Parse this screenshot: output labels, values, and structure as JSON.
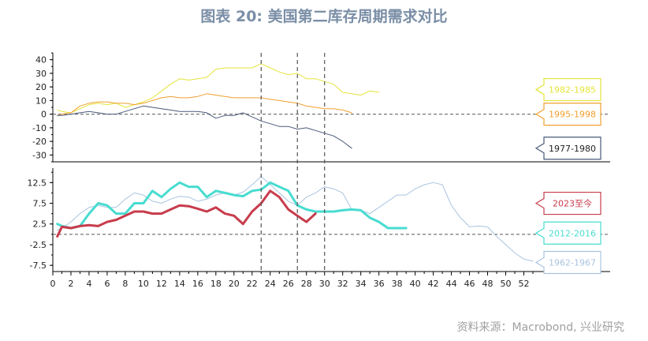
{
  "title": "图表 20: 美国第二库存周期需求对比",
  "source": "资料来源：Macrobond, 兴业研究",
  "chart_data": [
    {
      "type": "line",
      "panel": "top",
      "ylim": [
        -35,
        45
      ],
      "yticks": [
        40,
        30,
        20,
        10,
        0,
        -10,
        -20,
        -30
      ],
      "zero_line": "dashed",
      "series": [
        {
          "name": "1982-1985",
          "color": "#e4e43a",
          "width": 1,
          "x": [
            0.5,
            1,
            2,
            3,
            4,
            5,
            6,
            7,
            8,
            9,
            10,
            11,
            12,
            13,
            14,
            15,
            16,
            17,
            18,
            19,
            20,
            21,
            22,
            23,
            24,
            25,
            26,
            27,
            28,
            29,
            30,
            31,
            32,
            33,
            34,
            35,
            36
          ],
          "y": [
            3,
            2,
            1,
            4,
            7,
            8,
            7,
            8,
            5,
            7,
            9,
            12,
            17,
            22,
            26,
            25,
            26,
            27,
            33,
            34,
            34,
            34,
            34,
            37,
            34,
            31,
            29,
            30,
            26,
            26,
            24,
            22,
            16,
            15,
            14,
            17,
            16
          ]
        },
        {
          "name": "1995-1998",
          "color": "#f0a030",
          "width": 1,
          "x": [
            0.5,
            1,
            2,
            3,
            4,
            5,
            6,
            7,
            8,
            9,
            10,
            11,
            12,
            13,
            14,
            15,
            16,
            17,
            18,
            19,
            20,
            21,
            22,
            23,
            24,
            25,
            26,
            27,
            28,
            29,
            30,
            31,
            32,
            33
          ],
          "y": [
            -1,
            0,
            1,
            6,
            8,
            9,
            9,
            8,
            8,
            7,
            8,
            10,
            12,
            13,
            12,
            12,
            13,
            15,
            14,
            13,
            12,
            12,
            12,
            12,
            11,
            10,
            9,
            8,
            6,
            5,
            4,
            4,
            3,
            1
          ]
        },
        {
          "name": "1977-1980",
          "color": "#4a5a78",
          "width": 1,
          "x": [
            0.5,
            1,
            2,
            3,
            4,
            5,
            6,
            7,
            8,
            9,
            10,
            11,
            12,
            13,
            14,
            15,
            16,
            17,
            18,
            19,
            20,
            21,
            22,
            23,
            24,
            25,
            26,
            27,
            28,
            29,
            30,
            31,
            32,
            33
          ],
          "y": [
            -1,
            -1,
            0,
            1,
            2,
            1,
            0,
            0,
            2,
            4,
            6,
            5,
            4,
            3,
            2,
            2,
            2,
            1,
            -3,
            -1,
            -1,
            1,
            -2,
            -5,
            -7,
            -9,
            -9,
            -11,
            -10,
            -12,
            -14,
            -16,
            -20,
            -25
          ]
        }
      ],
      "labels": [
        {
          "text": "1982-1985",
          "color": "#e4e43a",
          "value": 18
        },
        {
          "text": "1995-1998",
          "color": "#f0a030",
          "value": 0
        },
        {
          "text": "1977-1980",
          "color": "#4a5a78",
          "value": -25
        }
      ]
    },
    {
      "type": "line",
      "panel": "bottom",
      "ylim": [
        -9,
        16
      ],
      "yticks": [
        12.5,
        7.5,
        2.5,
        -2.5,
        -7.5
      ],
      "xlim": [
        0,
        53
      ],
      "xticks": [
        0,
        2,
        4,
        6,
        8,
        10,
        12,
        14,
        16,
        18,
        20,
        22,
        24,
        26,
        28,
        30,
        32,
        34,
        36,
        38,
        40,
        42,
        44,
        46,
        48,
        50,
        52
      ],
      "zero_line": "dashed",
      "series": [
        {
          "name": "1962-1967",
          "color": "#aac4e0",
          "width": 1,
          "x": [
            0.5,
            1,
            2,
            3,
            4,
            5,
            6,
            7,
            8,
            9,
            10,
            11,
            12,
            13,
            14,
            15,
            16,
            17,
            18,
            19,
            20,
            21,
            22,
            23,
            24,
            25,
            26,
            27,
            28,
            29,
            30,
            31,
            32,
            33,
            34,
            35,
            36,
            37,
            38,
            39,
            40,
            41,
            42,
            43,
            44,
            45,
            46,
            47,
            48,
            49,
            50,
            51,
            52,
            53
          ],
          "y": [
            1,
            1.5,
            3,
            5,
            6.5,
            7,
            6.5,
            6.5,
            8.5,
            10,
            9.5,
            8,
            7.5,
            8.5,
            9.2,
            9,
            8,
            8.5,
            9.5,
            10,
            9.5,
            10.2,
            12,
            14,
            12,
            10,
            8,
            7,
            9,
            10,
            11.5,
            11,
            10,
            6,
            5.8,
            5,
            6.5,
            8,
            9.5,
            9.5,
            11,
            12,
            12.5,
            12,
            7,
            4,
            1.8,
            2,
            1.8,
            -0.5,
            -2.5,
            -4.5,
            -6,
            -6.5
          ]
        },
        {
          "name": "2012-2016",
          "color": "#48dcd0",
          "width": 3,
          "x": [
            0.5,
            1,
            2,
            3,
            4,
            5,
            6,
            7,
            8,
            9,
            10,
            11,
            12,
            13,
            14,
            15,
            16,
            17,
            18,
            19,
            20,
            21,
            22,
            23,
            24,
            25,
            26,
            27,
            28,
            29,
            30,
            31,
            32,
            33,
            34,
            35,
            36,
            37,
            38,
            39
          ],
          "y": [
            2.5,
            2,
            1.5,
            2,
            5,
            7.5,
            7,
            5,
            5,
            7.5,
            7.5,
            10.5,
            9,
            11,
            12.5,
            11.5,
            11.5,
            9,
            10.5,
            10,
            9.5,
            9.2,
            10.5,
            10.8,
            12.5,
            11.5,
            10.5,
            7,
            6,
            5.5,
            5.5,
            5.5,
            5.8,
            6,
            5.8,
            4,
            3,
            1.5,
            1.5,
            1.5
          ]
        },
        {
          "name": "2023至今",
          "color": "#c83c4c",
          "width": 3,
          "x": [
            0.5,
            1,
            2,
            3,
            4,
            5,
            6,
            7,
            8,
            9,
            10,
            11,
            12,
            13,
            14,
            15,
            16,
            17,
            18,
            19,
            20,
            21,
            22,
            23,
            24,
            25,
            26,
            27,
            28,
            29
          ],
          "y": [
            -0.5,
            1.8,
            1.5,
            2,
            2.2,
            2,
            3,
            3.5,
            4.5,
            5.5,
            5.5,
            5,
            5,
            6,
            7,
            6.8,
            6.2,
            5.5,
            6.5,
            5,
            4.5,
            2.5,
            5.5,
            7.5,
            10.5,
            9,
            6,
            4.5,
            3,
            5
          ]
        }
      ],
      "labels": [
        {
          "text": "2023至今",
          "color": "#c83c4c",
          "value": 7.5
        },
        {
          "text": "2012-2016",
          "color": "#48dcd0",
          "value": 0.3
        },
        {
          "text": "1962-1967",
          "color": "#aac4e0",
          "value": -6.8
        }
      ]
    }
  ],
  "vertical_lines": [
    23,
    27,
    30
  ]
}
